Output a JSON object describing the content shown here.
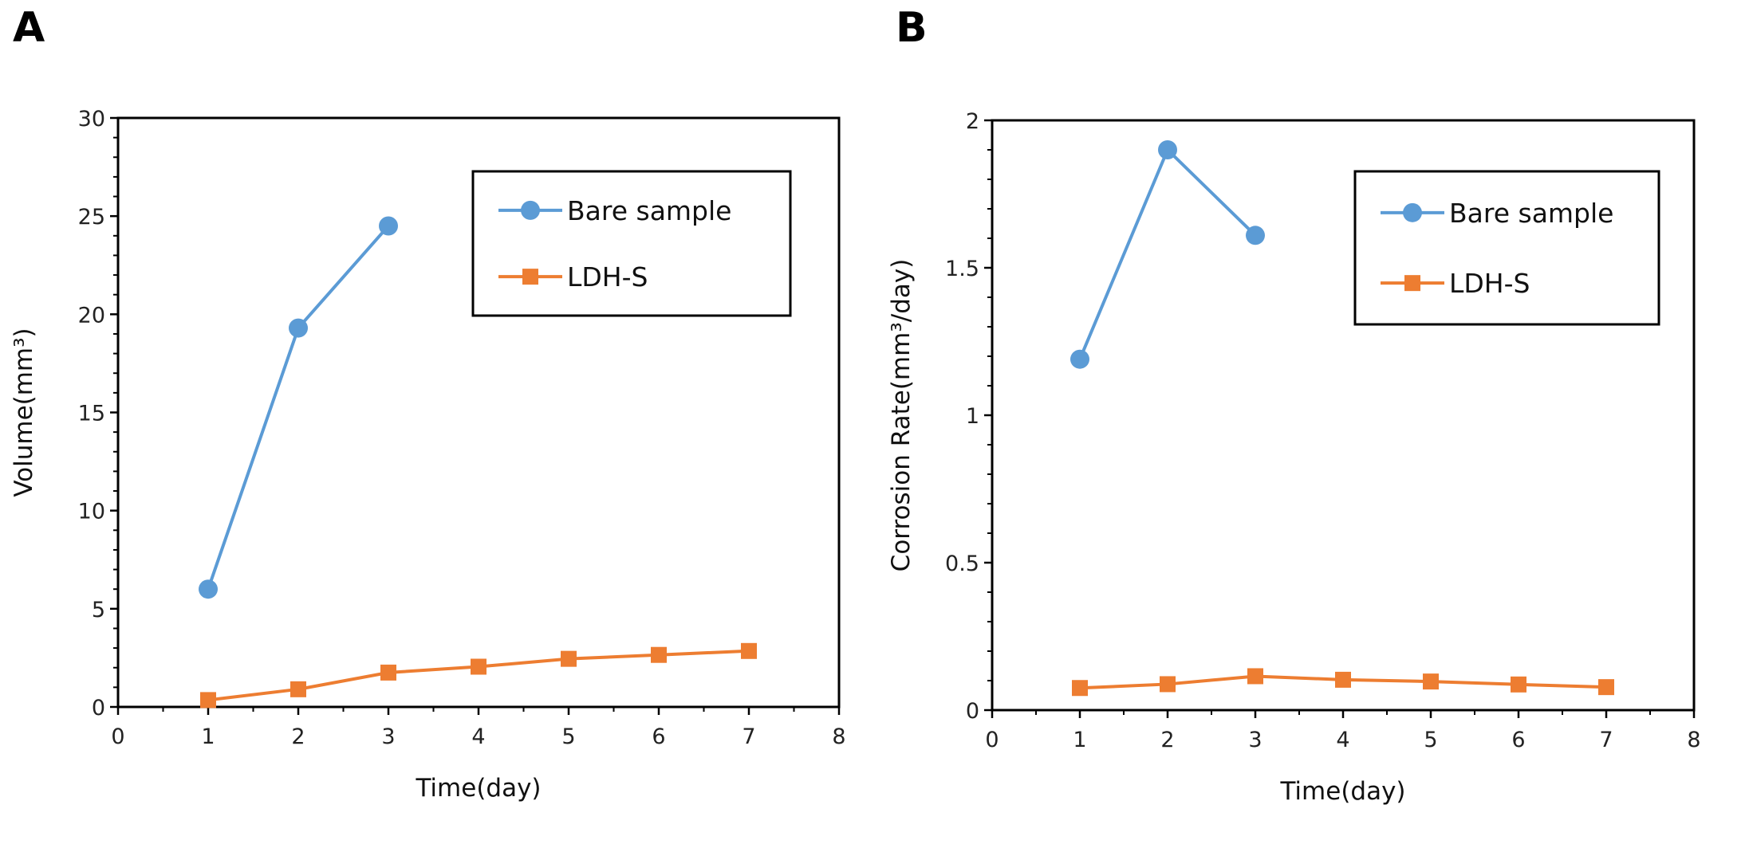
{
  "chart_data": [
    {
      "type": "line",
      "panel_label": "A",
      "title": "",
      "xlabel": "Time(day)",
      "ylabel": "Volume(mm³)",
      "xlim": [
        0,
        8
      ],
      "ylim": [
        0,
        30
      ],
      "xticks": [
        0,
        1,
        2,
        3,
        4,
        5,
        6,
        7,
        8
      ],
      "yticks": [
        0,
        5,
        10,
        15,
        20,
        25,
        30
      ],
      "grid": false,
      "legend_position": "top-right",
      "series": [
        {
          "name": "Bare sample",
          "color": "#5b9bd5",
          "marker": "circle",
          "x": [
            1,
            2,
            3
          ],
          "values": [
            6.0,
            19.3,
            24.5
          ]
        },
        {
          "name": "LDH-S",
          "color": "#ed7d31",
          "marker": "square",
          "x": [
            1,
            2,
            3,
            4,
            5,
            6,
            7
          ],
          "values": [
            0.35,
            0.9,
            1.75,
            2.05,
            2.45,
            2.65,
            2.85
          ]
        }
      ]
    },
    {
      "type": "line",
      "panel_label": "B",
      "title": "",
      "xlabel": "Time(day)",
      "ylabel": "Corrosion Rate(mm³/day)",
      "xlim": [
        0,
        8
      ],
      "ylim": [
        0,
        2
      ],
      "xticks": [
        0,
        1,
        2,
        3,
        4,
        5,
        6,
        7,
        8
      ],
      "yticks": [
        0,
        0.5,
        1,
        1.5,
        2
      ],
      "grid": false,
      "legend_position": "top-right",
      "series": [
        {
          "name": "Bare sample",
          "color": "#5b9bd5",
          "marker": "circle",
          "x": [
            1,
            2,
            3
          ],
          "values": [
            1.19,
            1.9,
            1.61
          ]
        },
        {
          "name": "LDH-S",
          "color": "#ed7d31",
          "marker": "square",
          "x": [
            1,
            2,
            3,
            4,
            5,
            6,
            7
          ],
          "values": [
            0.075,
            0.088,
            0.115,
            0.103,
            0.097,
            0.087,
            0.078
          ]
        }
      ]
    }
  ]
}
